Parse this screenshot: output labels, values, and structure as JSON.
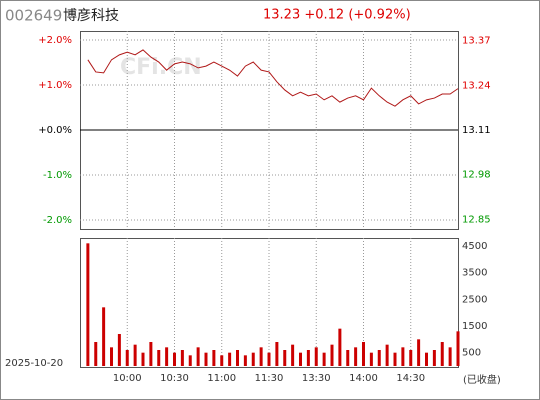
{
  "header": {
    "code": "002649",
    "name": "博彦科技",
    "quote": "13.23 +0.12 (+0.92%)"
  },
  "chart_data": [
    {
      "type": "line",
      "watermark": "CFi.CN",
      "categories": [
        "09:35",
        "09:40",
        "09:45",
        "09:50",
        "09:55",
        "10:00",
        "10:05",
        "10:10",
        "10:15",
        "10:20",
        "10:25",
        "10:30",
        "10:35",
        "10:40",
        "10:45",
        "10:50",
        "10:55",
        "11:00",
        "11:05",
        "11:10",
        "11:15",
        "11:20",
        "11:25",
        "11:30",
        "13:05",
        "13:10",
        "13:15",
        "13:20",
        "13:25",
        "13:30",
        "13:35",
        "13:40",
        "13:45",
        "13:50",
        "13:55",
        "14:00",
        "14:05",
        "14:10",
        "14:15",
        "14:20",
        "14:25",
        "14:30",
        "14:35",
        "14:40",
        "14:45",
        "14:50",
        "14:55",
        "15:00"
      ],
      "series": [
        {
          "color": "#b01818",
          "values": [
            1.56,
            1.29,
            1.27,
            1.56,
            1.67,
            1.73,
            1.67,
            1.78,
            1.62,
            1.51,
            1.33,
            1.47,
            1.51,
            1.47,
            1.38,
            1.42,
            1.51,
            1.42,
            1.33,
            1.2,
            1.42,
            1.51,
            1.33,
            1.29,
            1.07,
            0.89,
            0.76,
            0.84,
            0.76,
            0.8,
            0.67,
            0.76,
            0.62,
            0.71,
            0.76,
            0.67,
            0.93,
            0.76,
            0.62,
            0.53,
            0.67,
            0.76,
            0.58,
            0.67,
            0.71,
            0.8,
            0.8,
            0.92
          ]
        }
      ],
      "ylim": [
        -2.2,
        2.2
      ],
      "yticks": [
        {
          "value": 2,
          "label": "+2.0%"
        },
        {
          "value": 1,
          "label": "+1.0%"
        },
        {
          "value": 0,
          "label": "+0.0%"
        },
        {
          "value": -1,
          "label": "-1.0%"
        },
        {
          "value": -2,
          "label": "-2.0%"
        }
      ],
      "y2lim": [
        12.822,
        13.398
      ],
      "y2ticks": [
        13.37,
        13.24,
        13.11,
        12.98,
        12.85
      ],
      "up_color": "#e00000",
      "down_color": "#009900",
      "grid": true
    },
    {
      "type": "bar",
      "color": "#cc0000",
      "x_label": "2025-10-20",
      "status": "(已收盘)",
      "categories": [
        "09:35",
        "09:40",
        "09:45",
        "09:50",
        "09:55",
        "10:00",
        "10:05",
        "10:10",
        "10:15",
        "10:20",
        "10:25",
        "10:30",
        "10:35",
        "10:40",
        "10:45",
        "10:50",
        "10:55",
        "11:00",
        "11:05",
        "11:10",
        "11:15",
        "11:20",
        "11:25",
        "11:30",
        "13:05",
        "13:10",
        "13:15",
        "13:20",
        "13:25",
        "13:30",
        "13:35",
        "13:40",
        "13:45",
        "13:50",
        "13:55",
        "14:00",
        "14:05",
        "14:10",
        "14:15",
        "14:20",
        "14:25",
        "14:30",
        "14:35",
        "14:40",
        "14:45",
        "14:50",
        "14:55",
        "15:00"
      ],
      "values": [
        4600,
        900,
        2200,
        700,
        1200,
        600,
        800,
        500,
        900,
        600,
        700,
        500,
        600,
        400,
        700,
        500,
        600,
        400,
        500,
        600,
        400,
        500,
        700,
        500,
        900,
        600,
        800,
        500,
        600,
        700,
        500,
        800,
        1400,
        600,
        700,
        900,
        500,
        600,
        800,
        500,
        700,
        600,
        1000,
        500,
        600,
        900,
        700,
        1300
      ],
      "ylim": [
        0,
        4800
      ],
      "yticks": [
        4500,
        3500,
        2500,
        1500,
        500
      ],
      "xticks": [
        "10:00",
        "10:30",
        "11:00",
        "11:30",
        "13:30",
        "14:00",
        "14:30"
      ],
      "grid": true
    }
  ]
}
